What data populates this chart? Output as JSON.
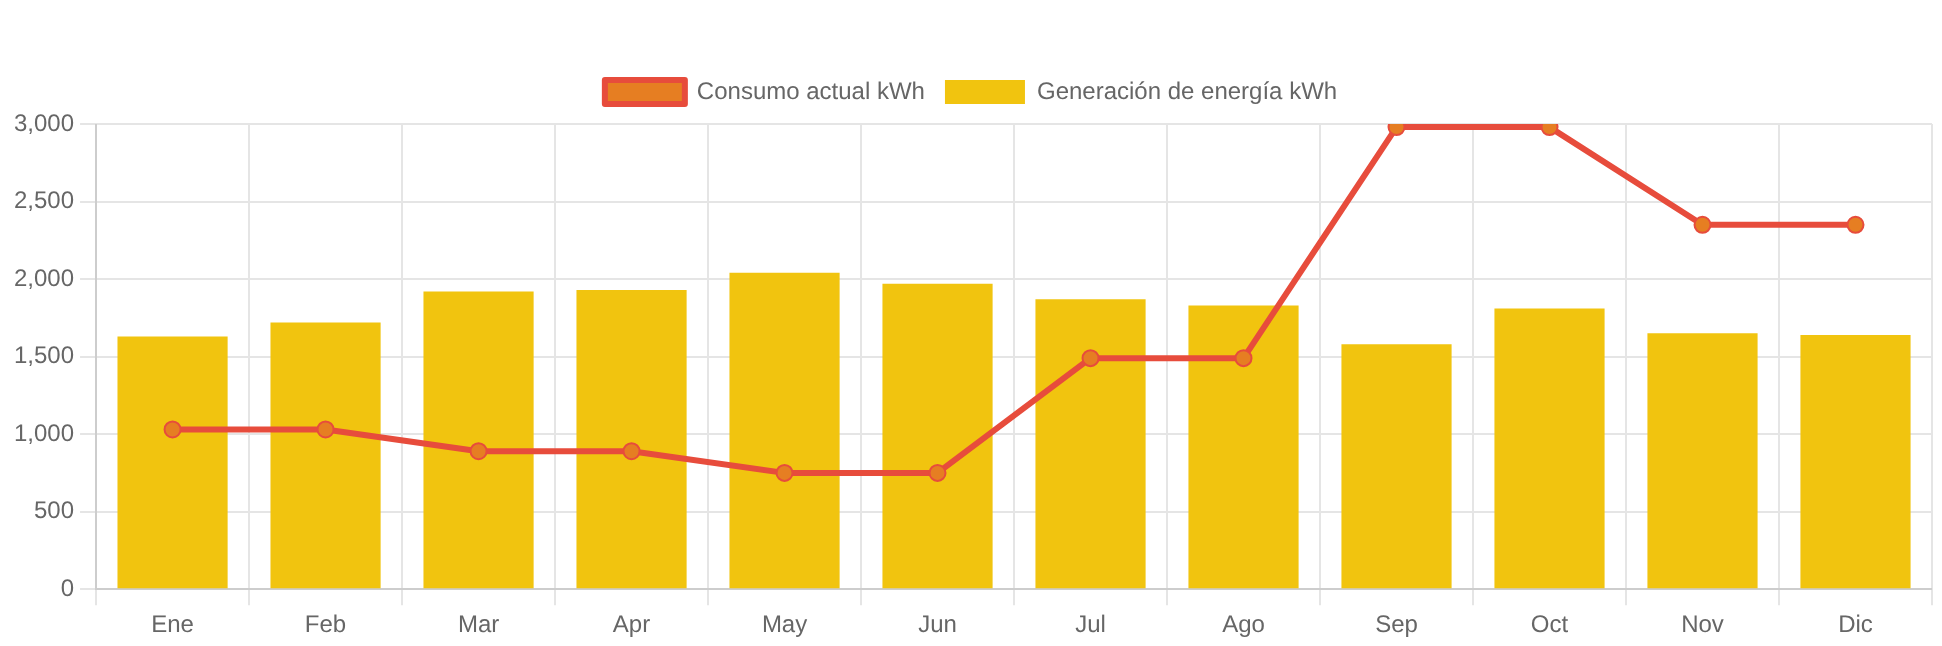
{
  "chart_data": {
    "type": "bar",
    "categories": [
      "Ene",
      "Feb",
      "Mar",
      "Apr",
      "May",
      "Jun",
      "Jul",
      "Ago",
      "Sep",
      "Oct",
      "Nov",
      "Dic"
    ],
    "series": [
      {
        "name": "Consumo actual kWh",
        "type": "line",
        "color": "#e74c3c",
        "values": [
          1030,
          1030,
          890,
          890,
          750,
          750,
          1490,
          1490,
          2980,
          2980,
          2350,
          2350
        ]
      },
      {
        "name": "Generación de energía kWh",
        "color": "#f1c40f",
        "values": [
          1630,
          1720,
          1920,
          1930,
          2040,
          1970,
          1870,
          1830,
          1580,
          1810,
          1650,
          1640
        ]
      }
    ],
    "ylim": [
      0,
      3000
    ],
    "yticks": [
      0,
      500,
      {
        "value": 1000,
        "label": "1,000"
      },
      {
        "value": 1500,
        "label": "1,500"
      },
      {
        "value": 2000,
        "label": "2,000"
      },
      {
        "value": 2500,
        "label": "2,500"
      },
      {
        "value": 3000,
        "label": "3,000"
      }
    ],
    "grid": true,
    "legend": "top",
    "marker": "circle",
    "line_style": "solid"
  }
}
